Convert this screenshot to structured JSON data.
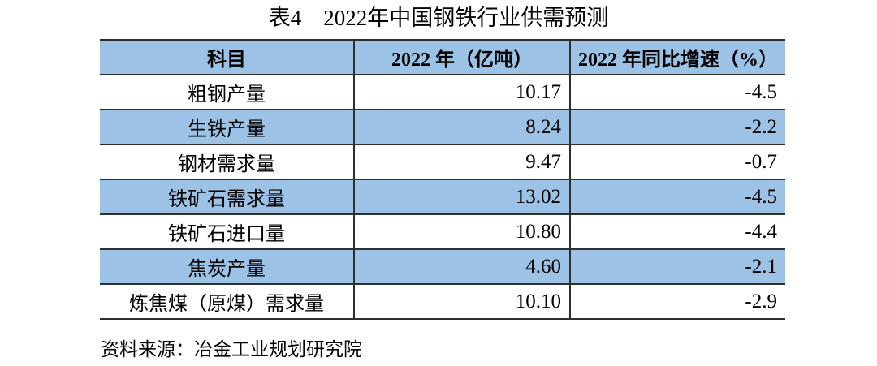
{
  "page": {
    "title": "表4　2022年中国钢铁行业供需预测",
    "source_note": "资料来源：冶金工业规划研究院"
  },
  "colors": {
    "header_bg": "#9cc2e5",
    "row_stripe_bg": "#9cc2e5",
    "border": "#2e2e2e",
    "text": "#000000",
    "page_background": "#ffffff"
  },
  "table": {
    "headers": [
      "科目",
      "2022 年（亿吨）",
      "2022 年同比增速（%）"
    ],
    "rows": [
      {
        "item": "粗钢产量",
        "value": "10.17",
        "growth": "-4.5"
      },
      {
        "item": "生铁产量",
        "value": "8.24",
        "growth": "-2.2"
      },
      {
        "item": "钢材需求量",
        "value": "9.47",
        "growth": "-0.7"
      },
      {
        "item": "铁矿石需求量",
        "value": "13.02",
        "growth": "-4.5"
      },
      {
        "item": "铁矿石进口量",
        "value": "10.80",
        "growth": "-4.4"
      },
      {
        "item": "焦炭产量",
        "value": "4.60",
        "growth": "-2.1"
      },
      {
        "item": "炼焦煤（原煤）需求量",
        "value": "10.10",
        "growth": "-2.9"
      }
    ]
  },
  "chart_data": {
    "type": "table",
    "title": "表4　2022年中国钢铁行业供需预测",
    "columns": [
      "科目",
      "2022 年（亿吨）",
      "2022 年同比增速（%）"
    ],
    "categories": [
      "粗钢产量",
      "生铁产量",
      "钢材需求量",
      "铁矿石需求量",
      "铁矿石进口量",
      "焦炭产量",
      "炼焦煤（原煤）需求量"
    ],
    "series": [
      {
        "name": "2022 年（亿吨）",
        "values": [
          10.17,
          8.24,
          9.47,
          13.02,
          10.8,
          4.6,
          10.1
        ]
      },
      {
        "name": "2022 年同比增速（%）",
        "values": [
          -4.5,
          -2.2,
          -0.7,
          -4.5,
          -4.4,
          -2.1,
          -2.9
        ]
      }
    ],
    "annotations": [
      "资料来源：冶金工业规划研究院"
    ]
  }
}
